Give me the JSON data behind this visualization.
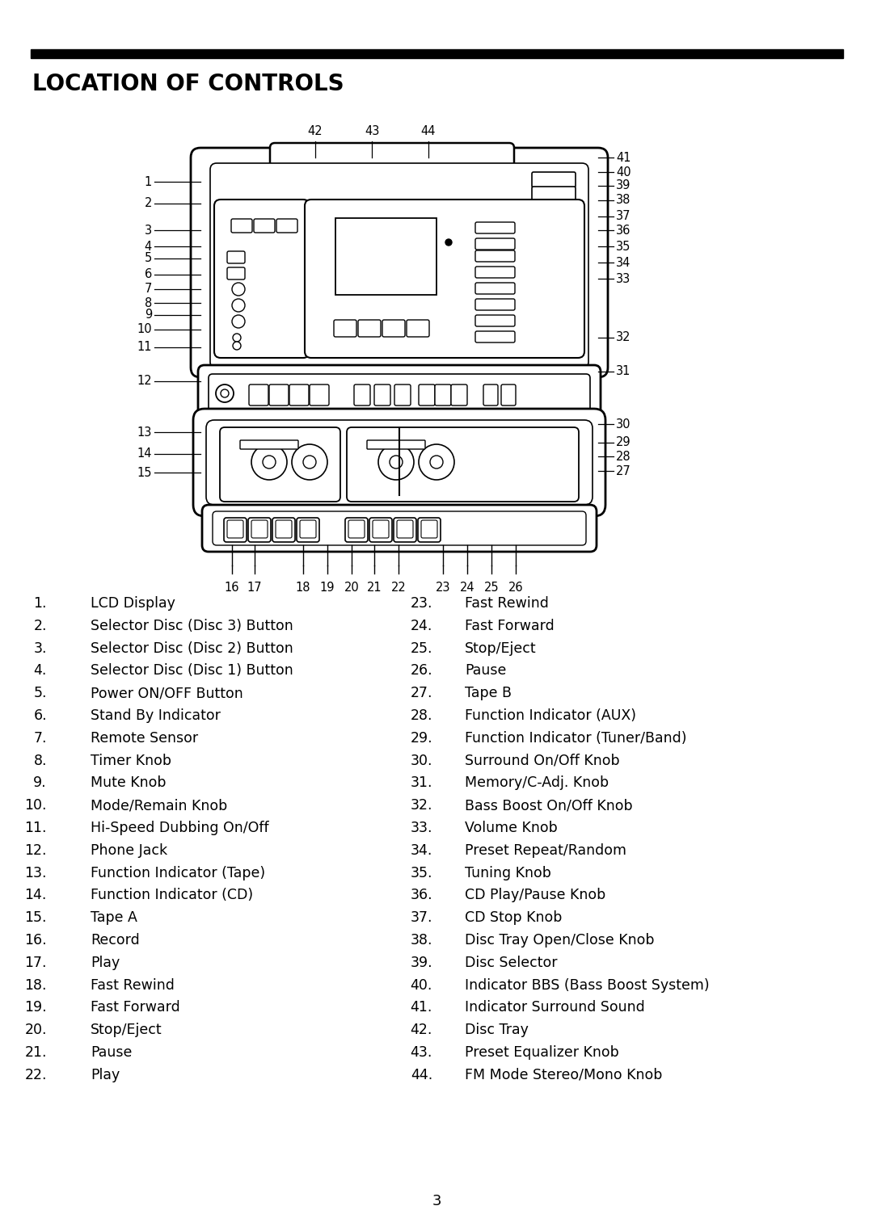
{
  "title": "LOCATION OF CONTROLS",
  "background_color": "#ffffff",
  "text_color": "#000000",
  "left_items_num": [
    "1.",
    "2.",
    "3.",
    "4.",
    "5.",
    "6.",
    "7.",
    "8.",
    "9.",
    "10.",
    "11.",
    "12.",
    "13.",
    "14.",
    "15.",
    "16.",
    "17.",
    "18.",
    "19.",
    "20.",
    "21.",
    "22."
  ],
  "left_items_text": [
    "LCD Display",
    "Selector Disc (Disc 3) Button",
    "Selector Disc (Disc 2) Button",
    "Selector Disc (Disc 1) Button",
    "Power ON/OFF Button",
    "Stand By Indicator",
    "Remote Sensor",
    "Timer Knob",
    "Mute Knob",
    "Mode/Remain Knob",
    "Hi-Speed Dubbing On/Off",
    "Phone Jack",
    "Function Indicator (Tape)",
    "Function Indicator (CD)",
    "Tape A",
    "Record",
    "Play",
    "Fast Rewind",
    "Fast Forward",
    "Stop/Eject",
    "Pause",
    "Play"
  ],
  "right_items_num": [
    "23.",
    "24.",
    "25.",
    "26.",
    "27.",
    "28.",
    "29.",
    "30.",
    "31.",
    "32.",
    "33.",
    "34.",
    "35.",
    "36.",
    "37.",
    "38.",
    "39.",
    "40.",
    "41.",
    "42.",
    "43.",
    "44."
  ],
  "right_items_text": [
    "Fast Rewind",
    "Fast Forward",
    "Stop/Eject",
    "Pause",
    "Tape B",
    "Function Indicator (AUX)",
    "Function Indicator (Tuner/Band)",
    "Surround On/Off Knob",
    "Memory/C-Adj. Knob",
    "Bass Boost On/Off Knob",
    "Volume Knob",
    "Preset Repeat/Random",
    "Tuning Knob",
    "CD Play/Pause Knob",
    "CD Stop Knob",
    "Disc Tray Open/Close Knob",
    "Disc Selector",
    "Indicator BBS (Bass Boost System)",
    "Indicator Surround Sound",
    "Disc Tray",
    "Preset Equalizer Knob",
    "FM Mode Stereo/Mono Knob"
  ],
  "page_number": "3",
  "diagram": {
    "left_labels": [
      1,
      2,
      3,
      4,
      5,
      6,
      7,
      8,
      9,
      10,
      11,
      12,
      13,
      14,
      15
    ],
    "right_labels": [
      41,
      40,
      39,
      38,
      37,
      36,
      35,
      34,
      33,
      32,
      31,
      30,
      29,
      28,
      27
    ],
    "top_labels": [
      "42",
      "43",
      "44"
    ],
    "bottom_labels": [
      "16",
      "17",
      "18",
      "19",
      "20",
      "21",
      "22",
      "23",
      "24",
      "25",
      "26"
    ]
  }
}
